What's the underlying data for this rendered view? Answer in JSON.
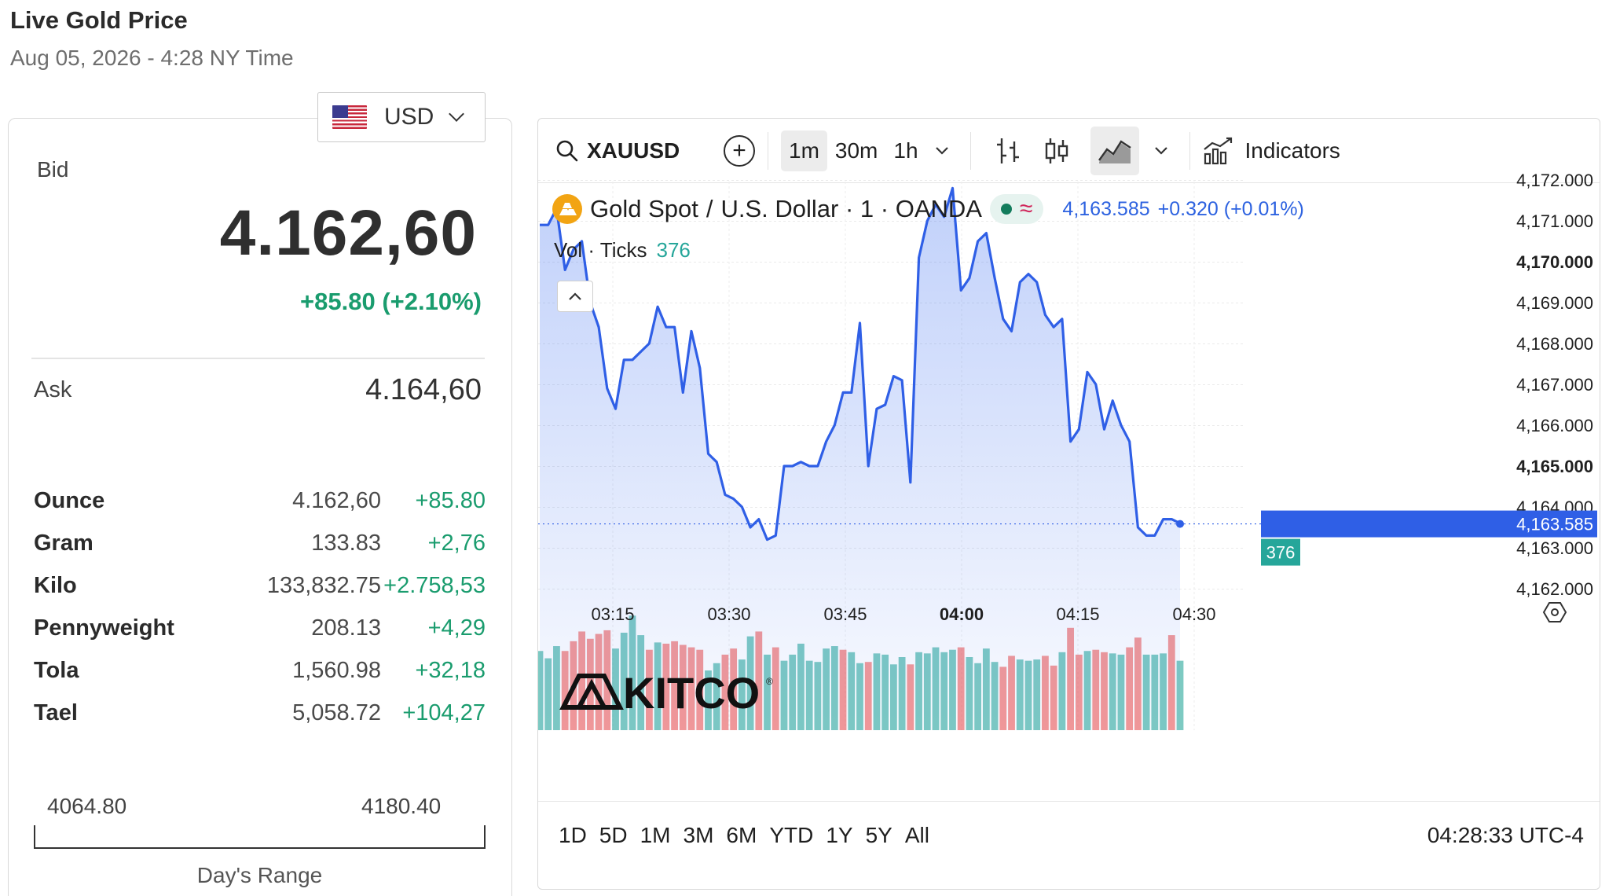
{
  "header": {
    "title": "Live Gold Price",
    "subtitle": "Aug 05, 2026 - 4:28 NY Time"
  },
  "currency": {
    "selected": "USD"
  },
  "bid": {
    "label": "Bid",
    "price": "4.162,60",
    "change": "+85.80 (+2.10%)"
  },
  "ask": {
    "label": "Ask",
    "price": "4.164,60"
  },
  "units": [
    {
      "name": "Ounce",
      "price": "4.162,60",
      "change": "+85.80"
    },
    {
      "name": "Gram",
      "price": "133.83",
      "change": "+2,76"
    },
    {
      "name": "Kilo",
      "price": "133,832.75",
      "change": "+2.758,53"
    },
    {
      "name": "Pennyweight",
      "price": "208.13",
      "change": "+4,29"
    },
    {
      "name": "Tola",
      "price": "1,560.98",
      "change": "+32,18"
    },
    {
      "name": "Tael",
      "price": "5,058.72",
      "change": "+104,27"
    }
  ],
  "days_range": {
    "low": "4064.80",
    "high": "4180.40",
    "label": "Day's Range"
  },
  "chart_widget": {
    "symbol": "XAUUSD",
    "intervals": [
      "1m",
      "30m",
      "1h"
    ],
    "active_interval": "1m",
    "indicators_label": "Indicators",
    "legend": {
      "title": "Gold Spot",
      "separator": "/",
      "quote": "U.S. Dollar · 1 · OANDA",
      "value": "4,163.585",
      "change": "+0.320 (+0.01%)"
    },
    "volume": {
      "label": "Vol · Ticks",
      "value": "376"
    },
    "watermark": "KITCO",
    "range_buttons": [
      "1D",
      "5D",
      "1M",
      "3M",
      "6M",
      "YTD",
      "1Y",
      "5Y",
      "All"
    ],
    "clock": "04:28:33 UTC-4",
    "colors": {
      "line": "#2f5fe6",
      "vol_up": "#26a69a",
      "vol_down": "#ef5350"
    }
  },
  "chart_data": {
    "type": "area",
    "series": [
      {
        "values": [
          4170.9,
          4170.9,
          4171.3,
          4169.8,
          4170.3,
          4170.5,
          4169.0,
          4168.4,
          4166.9,
          4166.4,
          4167.6,
          4167.6,
          4167.8,
          4168.0,
          4168.9,
          4168.4,
          4168.4,
          4166.8,
          4168.3,
          4167.4,
          4165.3,
          4165.1,
          4164.3,
          4164.2,
          4164.0,
          4163.5,
          4163.7,
          4163.2,
          4163.3,
          4165.0,
          4165.0,
          4165.1,
          4165.0,
          4165.0,
          4165.6,
          4166.0,
          4166.8,
          4166.8,
          4168.5,
          4165.0,
          4166.4,
          4166.5,
          4167.2,
          4167.1,
          4164.6,
          4170.1,
          4171.0,
          4171.4,
          4171.1,
          4171.8,
          4169.3,
          4169.6,
          4170.5,
          4170.7,
          4169.6,
          4168.6,
          4168.3,
          4169.5,
          4169.7,
          4169.5,
          4168.7,
          4168.4,
          4168.6,
          4165.6,
          4165.9,
          4167.3,
          4167.0,
          4165.9,
          4166.6,
          4166.0,
          4165.6,
          4163.5,
          4163.3,
          4163.3,
          4163.7,
          4163.7,
          4163.6
        ]
      }
    ],
    "volume": [
      65,
      59,
      69,
      65,
      73,
      81,
      75,
      79,
      82,
      67,
      80,
      94,
      78,
      66,
      72,
      71,
      73,
      70,
      68,
      66,
      49,
      55,
      62,
      67,
      58,
      77,
      81,
      62,
      68,
      57,
      62,
      71,
      57,
      56,
      67,
      69,
      66,
      64,
      55,
      56,
      63,
      62,
      54,
      60,
      54,
      64,
      63,
      68,
      64,
      66,
      68,
      60,
      55,
      67,
      56,
      52,
      61,
      58,
      57,
      58,
      61,
      53,
      64,
      84,
      62,
      65,
      66,
      64,
      63,
      62,
      68,
      76,
      62,
      62,
      63,
      78,
      57
    ],
    "volume_up": [
      true,
      true,
      true,
      false,
      false,
      false,
      false,
      false,
      false,
      true,
      true,
      true,
      true,
      false,
      true,
      false,
      false,
      false,
      false,
      false,
      true,
      true,
      false,
      false,
      true,
      true,
      false,
      true,
      false,
      true,
      true,
      true,
      true,
      true,
      true,
      true,
      false,
      true,
      true,
      false,
      true,
      true,
      true,
      true,
      false,
      true,
      true,
      true,
      true,
      true,
      false,
      true,
      true,
      true,
      true,
      false,
      false,
      true,
      true,
      true,
      false,
      false,
      true,
      false,
      false,
      true,
      false,
      false,
      true,
      true,
      false,
      false,
      true,
      true,
      true,
      false,
      true
    ],
    "x_ticks": [
      "03:15",
      "03:30",
      "03:45",
      "04:00",
      "04:15",
      "04:30"
    ],
    "y_ticks": [
      4172.0,
      4171.0,
      4170.0,
      4169.0,
      4168.0,
      4167.0,
      4166.0,
      4165.0,
      4164.0,
      4163.0,
      4162.0
    ],
    "y_tick_labels": [
      "4,172.000",
      "4,171.000",
      "4,170.000",
      "4,169.000",
      "4,168.000",
      "4,167.000",
      "4,166.000",
      "4,165.000",
      "4,164.000",
      "4,163.000",
      "4,162.000"
    ],
    "ylim": [
      4162.0,
      4172.0
    ],
    "last_price": "4,163.585",
    "last_price_value": 4163.585,
    "last_volume": "376",
    "grid": true
  }
}
